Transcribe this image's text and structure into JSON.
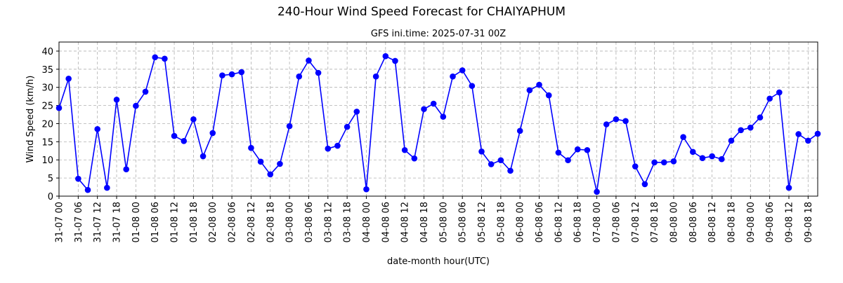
{
  "chart_data": {
    "type": "line",
    "title": "240-Hour Wind Speed Forecast for CHAIYAPHUM",
    "subtitle": "GFS ini.time: 2025-07-31 00Z",
    "xlabel": "date-month hour(UTC)",
    "ylabel": "Wind Speed (km/h)",
    "ylim": [
      0,
      42.5
    ],
    "yticks": [
      0,
      5,
      10,
      15,
      20,
      25,
      30,
      35,
      40
    ],
    "grid": true,
    "x_step_hours": 3,
    "xtick_labels": [
      "31-07 00",
      "31-07 06",
      "31-07 12",
      "31-07 18",
      "01-08 00",
      "01-08 06",
      "01-08 12",
      "01-08 18",
      "02-08 00",
      "02-08 06",
      "02-08 12",
      "02-08 18",
      "03-08 00",
      "03-08 06",
      "03-08 12",
      "03-08 18",
      "04-08 00",
      "04-08 06",
      "04-08 12",
      "04-08 18",
      "05-08 00",
      "05-08 06",
      "05-08 12",
      "05-08 18",
      "06-08 00",
      "06-08 06",
      "06-08 12",
      "06-08 18",
      "07-08 00",
      "07-08 06",
      "07-08 12",
      "07-08 18",
      "08-08 00",
      "08-08 06",
      "08-08 12",
      "08-08 18",
      "09-08 00",
      "09-08 06",
      "09-08 12",
      "09-08 18"
    ],
    "series": [
      {
        "color": "#0000ff",
        "values": [
          24.3,
          32.4,
          4.8,
          1.7,
          18.5,
          2.3,
          26.6,
          7.4,
          24.9,
          28.8,
          38.3,
          37.9,
          16.6,
          15.2,
          21.2,
          11.0,
          17.4,
          33.3,
          33.6,
          34.2,
          13.3,
          9.5,
          6.0,
          8.9,
          19.3,
          33.0,
          37.4,
          34.0,
          13.1,
          13.9,
          19.1,
          23.3,
          1.9,
          33.0,
          38.6,
          37.3,
          12.7,
          10.4,
          24.0,
          25.5,
          21.9,
          33.0,
          34.7,
          30.4,
          12.3,
          8.8,
          9.9,
          7.0,
          18.0,
          29.2,
          30.7,
          27.8,
          12.0,
          9.9,
          12.9,
          12.7,
          1.2,
          19.8,
          21.2,
          20.7,
          8.2,
          3.3,
          9.3,
          9.3,
          9.6,
          16.3,
          12.2,
          10.5,
          11.0,
          10.2,
          15.3,
          18.2,
          18.9,
          21.7,
          26.9,
          28.6,
          2.3,
          17.1,
          15.3,
          17.2
        ]
      }
    ]
  }
}
